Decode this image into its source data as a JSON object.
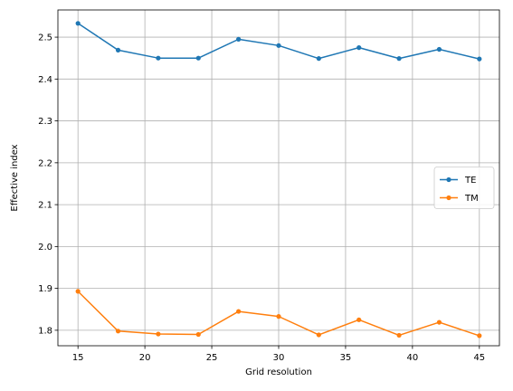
{
  "chart_data": {
    "type": "line",
    "title": "",
    "xlabel": "Grid resolution",
    "ylabel": "Effective index",
    "xlim": [
      13.5,
      46.5
    ],
    "ylim": [
      1.763,
      2.565
    ],
    "xticks": [
      15,
      20,
      25,
      30,
      35,
      40,
      45
    ],
    "yticks": [
      1.8,
      1.9,
      2.0,
      2.1,
      2.2,
      2.3,
      2.4,
      2.5
    ],
    "xtick_labels": [
      "15",
      "20",
      "25",
      "30",
      "35",
      "40",
      "45"
    ],
    "ytick_labels": [
      "1.8",
      "1.9",
      "2.0",
      "2.1",
      "2.2",
      "2.3",
      "2.4",
      "2.5"
    ],
    "grid": true,
    "legend_position": "center-right",
    "x": [
      15,
      18,
      21,
      24,
      27,
      30,
      33,
      36,
      39,
      42,
      45
    ],
    "series": [
      {
        "name": "TE",
        "color": "#1f77b4",
        "marker": "circle",
        "values": [
          2.533,
          2.469,
          2.45,
          2.45,
          2.495,
          2.48,
          2.449,
          2.475,
          2.449,
          2.471,
          2.448
        ]
      },
      {
        "name": "TM",
        "color": "#ff7f0e",
        "marker": "circle",
        "values": [
          1.893,
          1.798,
          1.791,
          1.79,
          1.845,
          1.833,
          1.789,
          1.825,
          1.788,
          1.819,
          1.787
        ]
      }
    ]
  }
}
